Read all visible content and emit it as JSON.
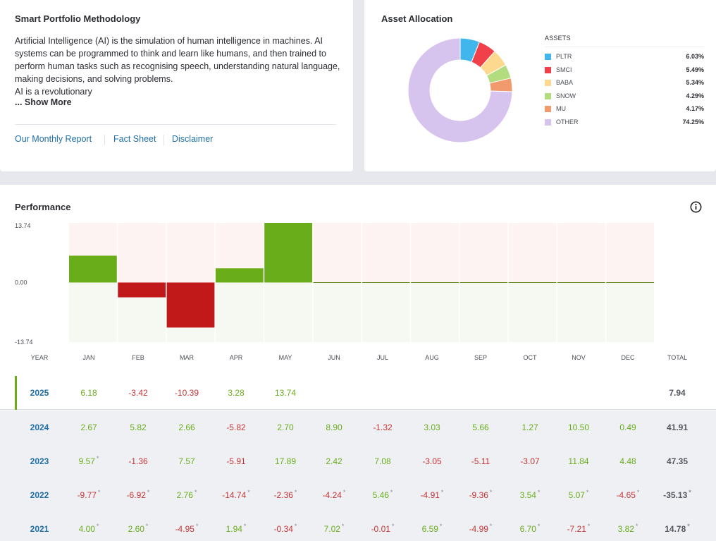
{
  "methodology": {
    "title": "Smart Portfolio Methodology",
    "body": "Artificial Intelligence (AI) is the simulation of human intelligence in machines. AI systems can be programmed to think and learn like humans, and then trained to perform human tasks such as recognising speech, understanding natural language, making decisions, and solving problems.",
    "body_line2": "AI is a revolutionary",
    "show_more": "... Show More",
    "links": [
      "Our Monthly Report",
      "Fact Sheet",
      "Disclaimer"
    ]
  },
  "allocation": {
    "title": "Asset Allocation",
    "assets_header": "ASSETS",
    "assets": [
      {
        "name": "PLTR",
        "pct": "6.03%",
        "value": 6.03,
        "color": "#41b6ec"
      },
      {
        "name": "SMCI",
        "pct": "5.49%",
        "value": 5.49,
        "color": "#f0414b"
      },
      {
        "name": "BABA",
        "pct": "5.34%",
        "value": 5.34,
        "color": "#fcd98f"
      },
      {
        "name": "SNOW",
        "pct": "4.29%",
        "value": 4.29,
        "color": "#b3dc7f"
      },
      {
        "name": "MU",
        "pct": "4.17%",
        "value": 4.17,
        "color": "#f19a6e"
      },
      {
        "name": "OTHER",
        "pct": "74.25%",
        "value": 74.25,
        "color": "#d6c4ee"
      }
    ]
  },
  "performance": {
    "title": "Performance",
    "info_icon": "info-circle-icon",
    "y_ticks": [
      "13.74",
      "0.00",
      "-13.74"
    ],
    "columns": [
      "YEAR",
      "JAN",
      "FEB",
      "MAR",
      "APR",
      "MAY",
      "JUN",
      "JUL",
      "AUG",
      "SEP",
      "OCT",
      "NOV",
      "DEC",
      "TOTAL"
    ],
    "rows": [
      {
        "year": "2025",
        "months": [
          "6.18",
          "-3.42",
          "-10.39",
          "3.28",
          "13.74",
          "",
          "",
          "",
          "",
          "",
          "",
          ""
        ],
        "stars": [
          false,
          false,
          false,
          false,
          false,
          false,
          false,
          false,
          false,
          false,
          false,
          false
        ],
        "total": "7.94",
        "total_star": false
      },
      {
        "year": "2024",
        "months": [
          "2.67",
          "5.82",
          "2.66",
          "-5.82",
          "2.70",
          "8.90",
          "-1.32",
          "3.03",
          "5.66",
          "1.27",
          "10.50",
          "0.49"
        ],
        "stars": [
          false,
          false,
          false,
          false,
          false,
          false,
          false,
          false,
          false,
          false,
          false,
          false
        ],
        "total": "41.91",
        "total_star": false
      },
      {
        "year": "2023",
        "months": [
          "9.57",
          "-1.36",
          "7.57",
          "-5.91",
          "17.89",
          "2.42",
          "7.08",
          "-3.05",
          "-5.11",
          "-3.07",
          "11.84",
          "4.48"
        ],
        "stars": [
          true,
          false,
          false,
          false,
          false,
          false,
          false,
          false,
          false,
          false,
          false,
          false
        ],
        "total": "47.35",
        "total_star": false
      },
      {
        "year": "2022",
        "months": [
          "-9.77",
          "-6.92",
          "2.76",
          "-14.74",
          "-2.36",
          "-4.24",
          "5.46",
          "-4.91",
          "-9.36",
          "3.54",
          "5.07",
          "-4.65"
        ],
        "stars": [
          true,
          true,
          true,
          true,
          true,
          true,
          true,
          true,
          true,
          true,
          true,
          true
        ],
        "total": "-35.13",
        "total_star": true
      },
      {
        "year": "2021",
        "months": [
          "4.00",
          "2.60",
          "-4.95",
          "1.94",
          "-0.34",
          "7.02",
          "-0.01",
          "6.59",
          "-4.99",
          "6.70",
          "-7.21",
          "3.82"
        ],
        "stars": [
          true,
          true,
          true,
          true,
          true,
          true,
          true,
          true,
          true,
          true,
          true,
          true
        ],
        "total": "14.78",
        "total_star": true
      }
    ],
    "star_symbol": "*"
  },
  "chart_data": {
    "type": "bar",
    "categories": [
      "JAN",
      "FEB",
      "MAR",
      "APR",
      "MAY",
      "JUN",
      "JUL",
      "AUG",
      "SEP",
      "OCT",
      "NOV",
      "DEC"
    ],
    "values": [
      6.18,
      -3.42,
      -10.39,
      3.28,
      13.74,
      0,
      0,
      0,
      0,
      0,
      0,
      0
    ],
    "ylim": [
      -13.74,
      13.74
    ],
    "title": "",
    "xlabel": "",
    "ylabel": "",
    "colors": {
      "positive": "#6aad1a",
      "negative": "#c1191a",
      "bg_upper": "#fdf3f2",
      "bg_lower": "#f5f9f1",
      "zero_line": "#6b8a2d"
    }
  }
}
